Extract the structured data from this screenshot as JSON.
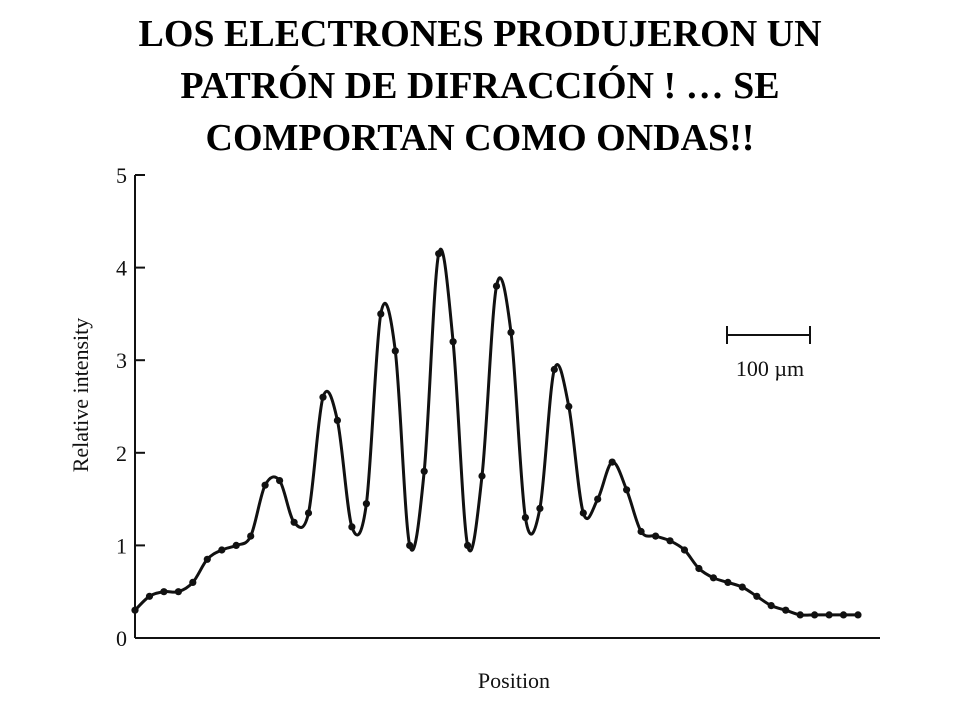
{
  "slide": {
    "title_lines": [
      "LOS ELECTRONES PRODUJERON UN",
      "PATRÓN DE DIFRACCIÓN ! … SE",
      "COMPORTAN COMO ONDAS!!"
    ]
  },
  "chart_data": {
    "type": "line",
    "xlabel": "Position",
    "ylabel": "Relative intensity",
    "ylim": [
      0,
      5
    ],
    "yticks": [
      "0",
      "1",
      "2",
      "3",
      "4",
      "5"
    ],
    "xticks": [],
    "grid": false,
    "legend": "none",
    "scale_bar_label": "100 µm",
    "line_color": "#111111",
    "series": [
      {
        "x": [
          0,
          2,
          4,
          6,
          8,
          10,
          12,
          14,
          16,
          18,
          20,
          22,
          24,
          26,
          28,
          30,
          32,
          34,
          36,
          38,
          40,
          42,
          44,
          46,
          48,
          50,
          52,
          54,
          56,
          58,
          60,
          62,
          64,
          66,
          68,
          70,
          72,
          74,
          76,
          78,
          80,
          82,
          84,
          86,
          88,
          90,
          92,
          94,
          96,
          98,
          100
        ],
        "y": [
          0.3,
          0.45,
          0.5,
          0.5,
          0.6,
          0.85,
          0.95,
          1.0,
          1.1,
          1.65,
          1.7,
          1.25,
          1.35,
          2.6,
          2.35,
          1.2,
          1.45,
          3.5,
          3.1,
          1.0,
          1.8,
          4.15,
          3.2,
          1.0,
          1.75,
          3.8,
          3.3,
          1.3,
          1.4,
          2.9,
          2.5,
          1.35,
          1.5,
          1.9,
          1.6,
          1.15,
          1.1,
          1.05,
          0.95,
          0.75,
          0.65,
          0.6,
          0.55,
          0.45,
          0.35,
          0.3,
          0.25,
          0.25,
          0.25,
          0.25,
          0.25
        ]
      }
    ]
  }
}
